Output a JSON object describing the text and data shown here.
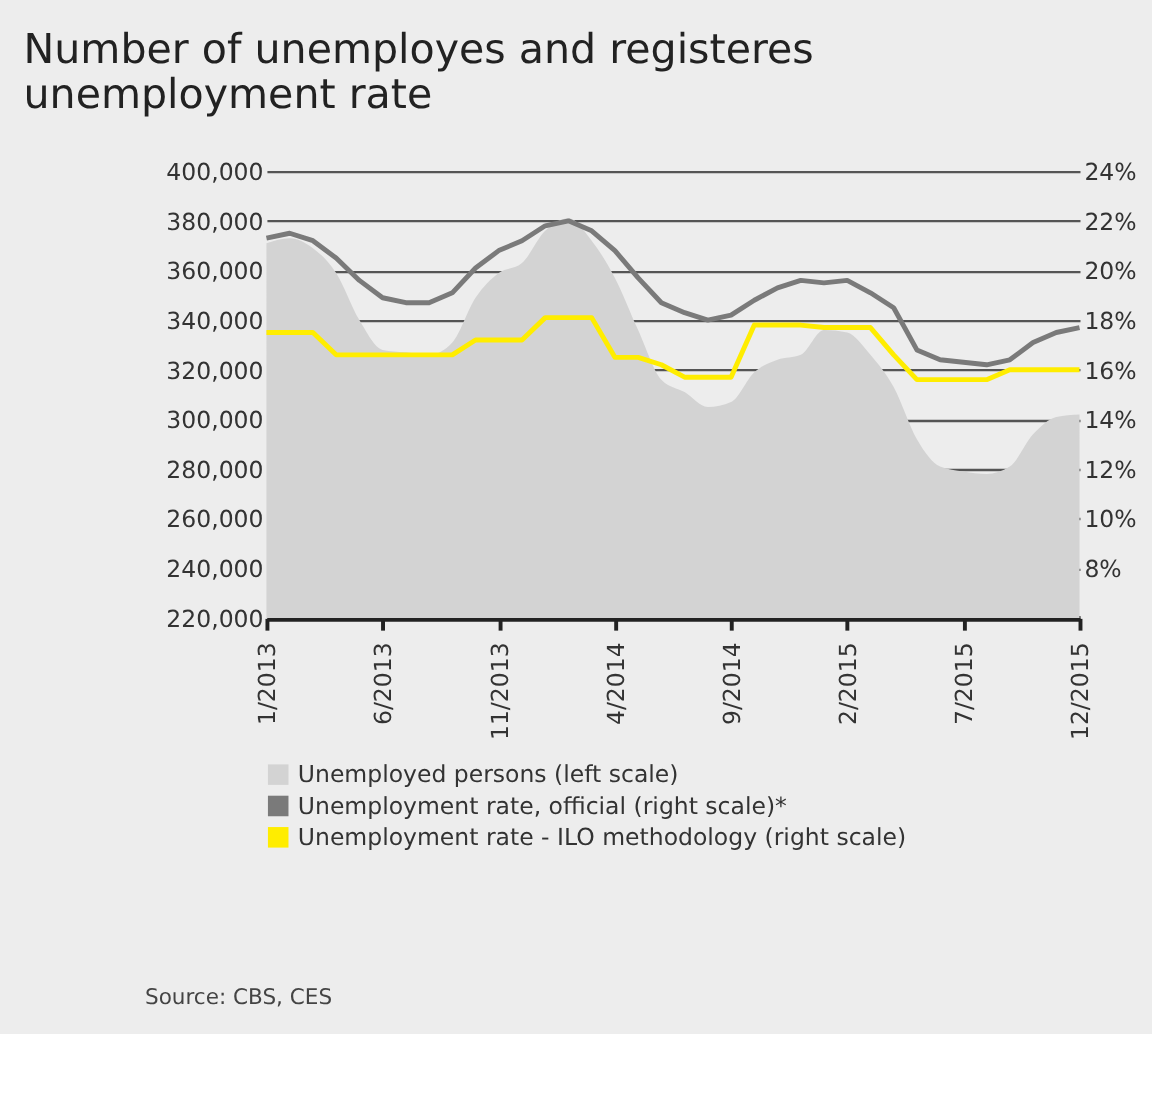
{
  "chart_data": {
    "type": "area",
    "title": "Number of unemployes and registeres unemployment rate",
    "categories": [
      "1/2013",
      null,
      null,
      null,
      null,
      "6/2013",
      null,
      null,
      null,
      null,
      "11/2013",
      null,
      null,
      null,
      null,
      "4/2014",
      null,
      null,
      null,
      null,
      "9/2014",
      null,
      null,
      null,
      null,
      "2/2015",
      null,
      null,
      null,
      null,
      "7/2015",
      null,
      null,
      null,
      null,
      "12/2015"
    ],
    "series": [
      {
        "name": "Unemployed persons (left scale)",
        "color": "#d3d3d3",
        "values": [
          371000,
          373000,
          369000,
          359000,
          340000,
          328000,
          327000,
          326000,
          331000,
          349000,
          359000,
          363000,
          376000,
          381000,
          372000,
          357000,
          336000,
          316000,
          311000,
          305000,
          307000,
          319000,
          324000,
          326000,
          336000,
          335000,
          326000,
          313000,
          292000,
          281000,
          279000,
          278000,
          281000,
          294000,
          301000,
          302000
        ]
      },
      {
        "name": "Unemployment rate, official (right scale)*",
        "type": "line",
        "axis": "y2",
        "color": "#7a7a7a",
        "values": [
          21.3,
          21.5,
          21.2,
          20.5,
          19.6,
          18.9,
          18.7,
          18.7,
          19.1,
          20.1,
          20.8,
          21.2,
          21.8,
          22.0,
          21.6,
          20.8,
          19.7,
          18.7,
          18.3,
          18.0,
          18.2,
          18.8,
          19.3,
          19.6,
          19.5,
          19.6,
          19.1,
          18.5,
          16.8,
          16.4,
          16.3,
          16.2,
          16.4,
          17.1,
          17.5,
          17.7
        ]
      },
      {
        "name": "Unemployment rate - ILO methodology (right scale)",
        "type": "line",
        "axis": "y2",
        "color": "#ffed00",
        "values": [
          17.5,
          17.5,
          17.5,
          16.6,
          16.6,
          16.6,
          16.6,
          16.6,
          16.6,
          17.2,
          17.2,
          17.2,
          18.1,
          18.1,
          18.1,
          16.5,
          16.5,
          16.2,
          15.7,
          15.7,
          15.7,
          17.8,
          17.8,
          17.8,
          17.7,
          17.7,
          17.7,
          16.6,
          15.6,
          15.6,
          15.6,
          15.6,
          16.0,
          16.0,
          16.0,
          16.0
        ]
      }
    ],
    "ylim": [
      220000,
      400000
    ],
    "yticks": [
      {
        "value": 220000,
        "label": "220,000"
      },
      {
        "value": 240000,
        "label": "240,000"
      },
      {
        "value": 260000,
        "label": "260,000"
      },
      {
        "value": 280000,
        "label": "280,000"
      },
      {
        "value": 300000,
        "label": "300,000"
      },
      {
        "value": 320000,
        "label": "320,000"
      },
      {
        "value": 340000,
        "label": "340,000"
      },
      {
        "value": 360000,
        "label": "360,000"
      },
      {
        "value": 380000,
        "label": "380,000"
      },
      {
        "value": 400000,
        "label": "400,000"
      }
    ],
    "y2lim": [
      6,
      24
    ],
    "y2ticks": [
      {
        "value": 8,
        "label": "8%"
      },
      {
        "value": 10,
        "label": "10%"
      },
      {
        "value": 12,
        "label": "12%"
      },
      {
        "value": 14,
        "label": "14%"
      },
      {
        "value": 16,
        "label": "16%"
      },
      {
        "value": 18,
        "label": "18%"
      },
      {
        "value": 20,
        "label": "20%"
      },
      {
        "value": 22,
        "label": "22%"
      },
      {
        "value": 24,
        "label": "24%"
      }
    ],
    "grid": "y",
    "legend": "bottom",
    "annotations": [
      "Source: CBS, CES"
    ]
  }
}
